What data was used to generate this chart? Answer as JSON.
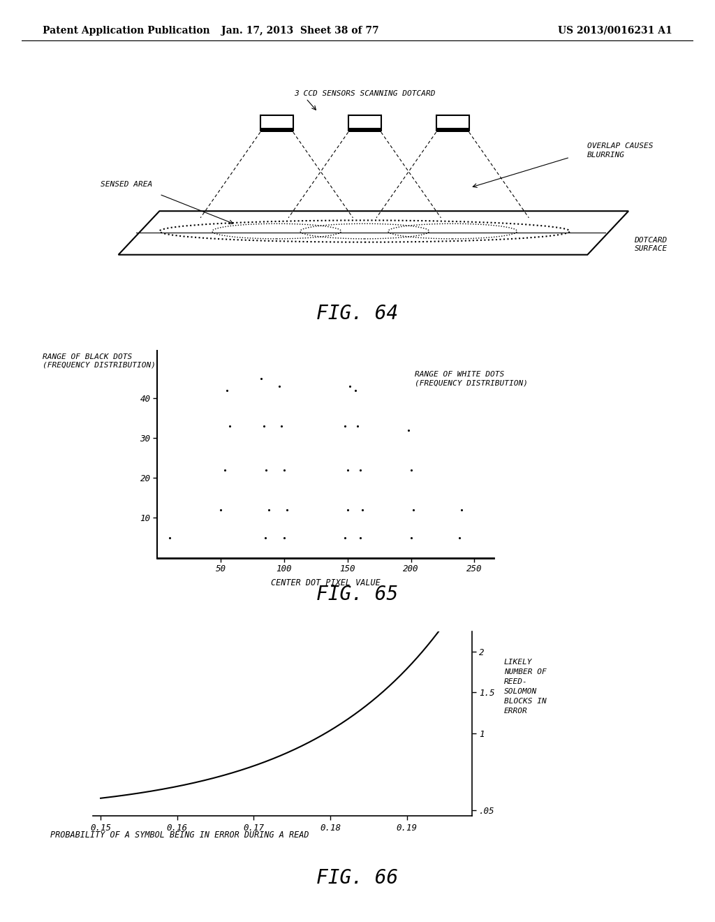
{
  "header_left": "Patent Application Publication",
  "header_mid": "Jan. 17, 2013  Sheet 38 of 77",
  "header_right": "US 2013/0016231 A1",
  "fig64_label": "FIG. 64",
  "fig65_label": "FIG. 65",
  "fig66_label": "FIG. 66",
  "fig64_annotations": {
    "sensors_label": "3 CCD SENSORS SCANNING DOTCARD",
    "overlap_label": "OVERLAP CAUSES\nBLURRING",
    "sensed_area_label": "SENSED AREA",
    "dotcard_label": "DOTCARD\nSURFACE"
  },
  "fig65": {
    "ylabel": "RANGE OF BLACK DOTS\n(FREQUENCY DISTRIBUTION)",
    "ylabel2": "RANGE OF WHITE DOTS\n(FREQUENCY DISTRIBUTION)",
    "xlabel": "CENTER DOT PIXEL VALUE",
    "yticks": [
      10,
      20,
      30,
      40
    ],
    "xticks": [
      50,
      100,
      150,
      200,
      250
    ]
  },
  "fig66": {
    "xlabel": "PROBABILITY OF A SYMBOL BEING IN ERROR DURING A READ",
    "ylabel_labels": [
      ".05",
      "1",
      "1.5",
      "2"
    ],
    "xticks": [
      0.15,
      0.16,
      0.17,
      0.18,
      0.19
    ],
    "xlabel_labels": [
      "0.15",
      "0.16",
      "0.17",
      "0.18",
      "0.19"
    ],
    "right_label": "LIKELY\nNUMBER OF\nREED-\nSOLOMON\nBLOCKS IN\nERROR"
  },
  "bg_color": "#ffffff",
  "scatter_data": [
    [
      10,
      5
    ],
    [
      50,
      12
    ],
    [
      53,
      22
    ],
    [
      57,
      33
    ],
    [
      55,
      42
    ],
    [
      85,
      5
    ],
    [
      88,
      12
    ],
    [
      86,
      22
    ],
    [
      84,
      33
    ],
    [
      82,
      45
    ],
    [
      100,
      5
    ],
    [
      102,
      12
    ],
    [
      100,
      22
    ],
    [
      98,
      33
    ],
    [
      96,
      43
    ],
    [
      148,
      5
    ],
    [
      150,
      12
    ],
    [
      150,
      22
    ],
    [
      148,
      33
    ],
    [
      152,
      43
    ],
    [
      160,
      5
    ],
    [
      162,
      12
    ],
    [
      160,
      22
    ],
    [
      158,
      33
    ],
    [
      156,
      42
    ],
    [
      200,
      5
    ],
    [
      202,
      12
    ],
    [
      200,
      22
    ],
    [
      198,
      32
    ],
    [
      238,
      5
    ],
    [
      240,
      12
    ]
  ]
}
